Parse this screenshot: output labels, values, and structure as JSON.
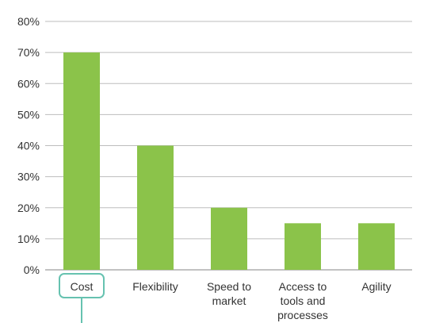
{
  "colors": {
    "bar": "#8bc34a",
    "grid": "#bdbdbd",
    "axis": "#9e9e9e",
    "text": "#333333",
    "highlight": "#66c2b0"
  },
  "chart_data": {
    "type": "bar",
    "categories": [
      "Cost",
      "Flexibility",
      "Speed to market",
      "Access to tools and processes",
      "Agility"
    ],
    "category_lines": [
      [
        "Cost"
      ],
      [
        "Flexibility"
      ],
      [
        "Speed to",
        "market"
      ],
      [
        "Access to",
        "tools and",
        "processes"
      ],
      [
        "Agility"
      ]
    ],
    "values": [
      70,
      40,
      20,
      15,
      15
    ],
    "title": "",
    "xlabel": "",
    "ylabel": "",
    "ylim": [
      0,
      80
    ],
    "yticks": [
      0,
      10,
      20,
      30,
      40,
      50,
      60,
      70,
      80
    ],
    "ytick_labels": [
      "0%",
      "10%",
      "20%",
      "30%",
      "40%",
      "50%",
      "60%",
      "70%",
      "80%"
    ],
    "grid": true,
    "legend": false,
    "highlighted_category": "Cost"
  }
}
